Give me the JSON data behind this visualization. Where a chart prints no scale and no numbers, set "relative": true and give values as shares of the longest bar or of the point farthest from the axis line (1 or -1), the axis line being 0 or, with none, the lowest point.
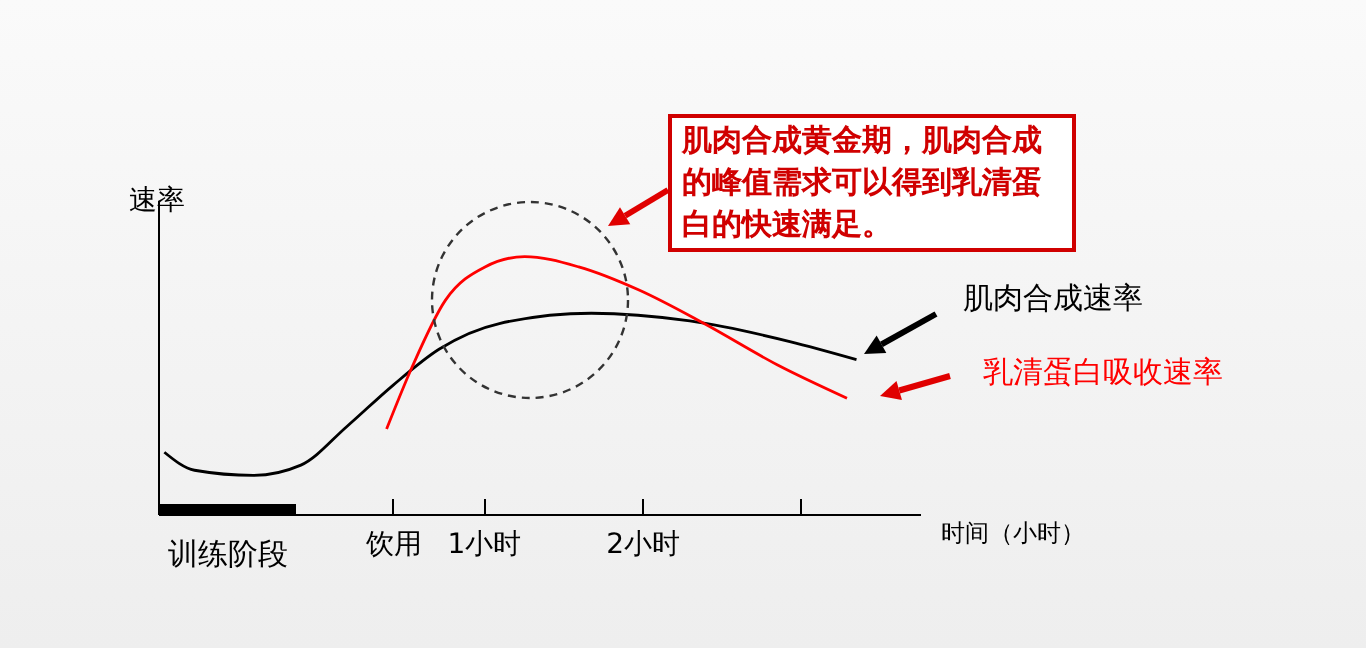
{
  "chart_data": {
    "type": "line",
    "relative": true,
    "ylabel": "速率",
    "xlabel": "时间（小时）",
    "xlim": [
      -1.05,
      3.75
    ],
    "xticks": [
      {
        "value": 0.43,
        "label": "饮用"
      },
      {
        "value": 1,
        "label": "1小时"
      },
      {
        "value": 2,
        "label": "2小时"
      },
      {
        "value": 3,
        "label": null
      }
    ],
    "series": [
      {
        "name": "肌肉合成速率",
        "color": "#000000",
        "x": [
          -1.01,
          -0.82,
          -0.45,
          -0.15,
          0.14,
          0.43,
          0.72,
          1.1,
          1.68,
          2.3,
          2.93,
          3.35
        ],
        "values": [
          0.24,
          0.17,
          0.15,
          0.19,
          0.34,
          0.5,
          0.64,
          0.74,
          0.78,
          0.75,
          0.67,
          0.6
        ]
      },
      {
        "name": "乳清蛋白吸收速率",
        "color": "#ff0000",
        "x": [
          0.39,
          0.55,
          0.76,
          1.01,
          1.26,
          1.6,
          1.98,
          2.39,
          2.85,
          3.29
        ],
        "values": [
          0.33,
          0.57,
          0.83,
          0.96,
          1,
          0.96,
          0.87,
          0.74,
          0.58,
          0.45
        ]
      }
    ],
    "annotations": [
      "肌肉合成黄金期，肌肉合成的峰值需求可以得到乳清蛋白的快速满足。",
      "训练阶段"
    ],
    "legend": false,
    "grid": false
  }
}
